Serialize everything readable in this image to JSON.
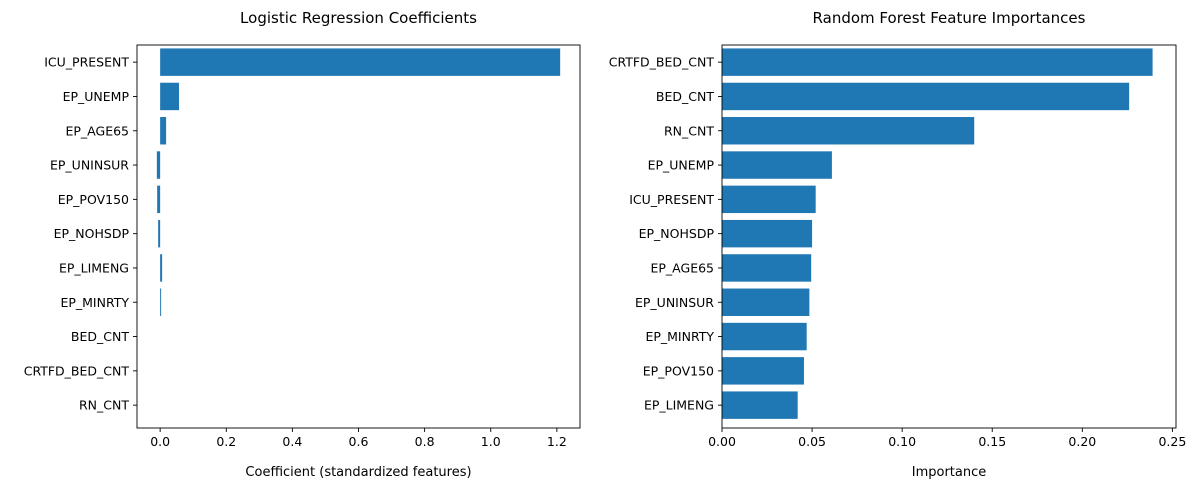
{
  "chart_data": [
    {
      "type": "bar",
      "orientation": "horizontal",
      "title": "Logistic Regression Coefficients",
      "xlabel": "Coefficient (standardized features)",
      "ylabel": "",
      "categories": [
        "ICU_PRESENT",
        "EP_UNEMP",
        "EP_AGE65",
        "EP_UNINSUR",
        "EP_POV150",
        "EP_NOHSDP",
        "EP_LIMENG",
        "EP_MINRTY",
        "BED_CNT",
        "CRTFD_BED_CNT",
        "RN_CNT"
      ],
      "values": [
        1.21,
        0.057,
        0.018,
        -0.01,
        -0.009,
        -0.006,
        0.006,
        0.003,
        0.0,
        0.0,
        0.0
      ],
      "xlim": [
        -0.07,
        1.27
      ],
      "xticks": [
        0.0,
        0.2,
        0.4,
        0.6,
        0.8,
        1.0,
        1.2
      ],
      "xtick_labels": [
        "0.0",
        "0.2",
        "0.4",
        "0.6",
        "0.8",
        "1.0",
        "1.2"
      ],
      "bar_color": "#1f77b4",
      "grid": false
    },
    {
      "type": "bar",
      "orientation": "horizontal",
      "title": "Random Forest Feature Importances",
      "xlabel": "Importance",
      "ylabel": "",
      "categories": [
        "CRTFD_BED_CNT",
        "BED_CNT",
        "RN_CNT",
        "EP_UNEMP",
        "ICU_PRESENT",
        "EP_NOHSDP",
        "EP_AGE65",
        "EP_UNINSUR",
        "EP_MINRTY",
        "EP_POV150",
        "EP_LIMENG"
      ],
      "values": [
        0.239,
        0.226,
        0.14,
        0.061,
        0.052,
        0.05,
        0.0495,
        0.0485,
        0.047,
        0.0455,
        0.042
      ],
      "xlim": [
        0.0,
        0.252
      ],
      "xticks": [
        0.0,
        0.05,
        0.1,
        0.15,
        0.2,
        0.25
      ],
      "xtick_labels": [
        "0.00",
        "0.05",
        "0.10",
        "0.15",
        "0.20",
        "0.25"
      ],
      "bar_color": "#1f77b4",
      "grid": false
    }
  ]
}
